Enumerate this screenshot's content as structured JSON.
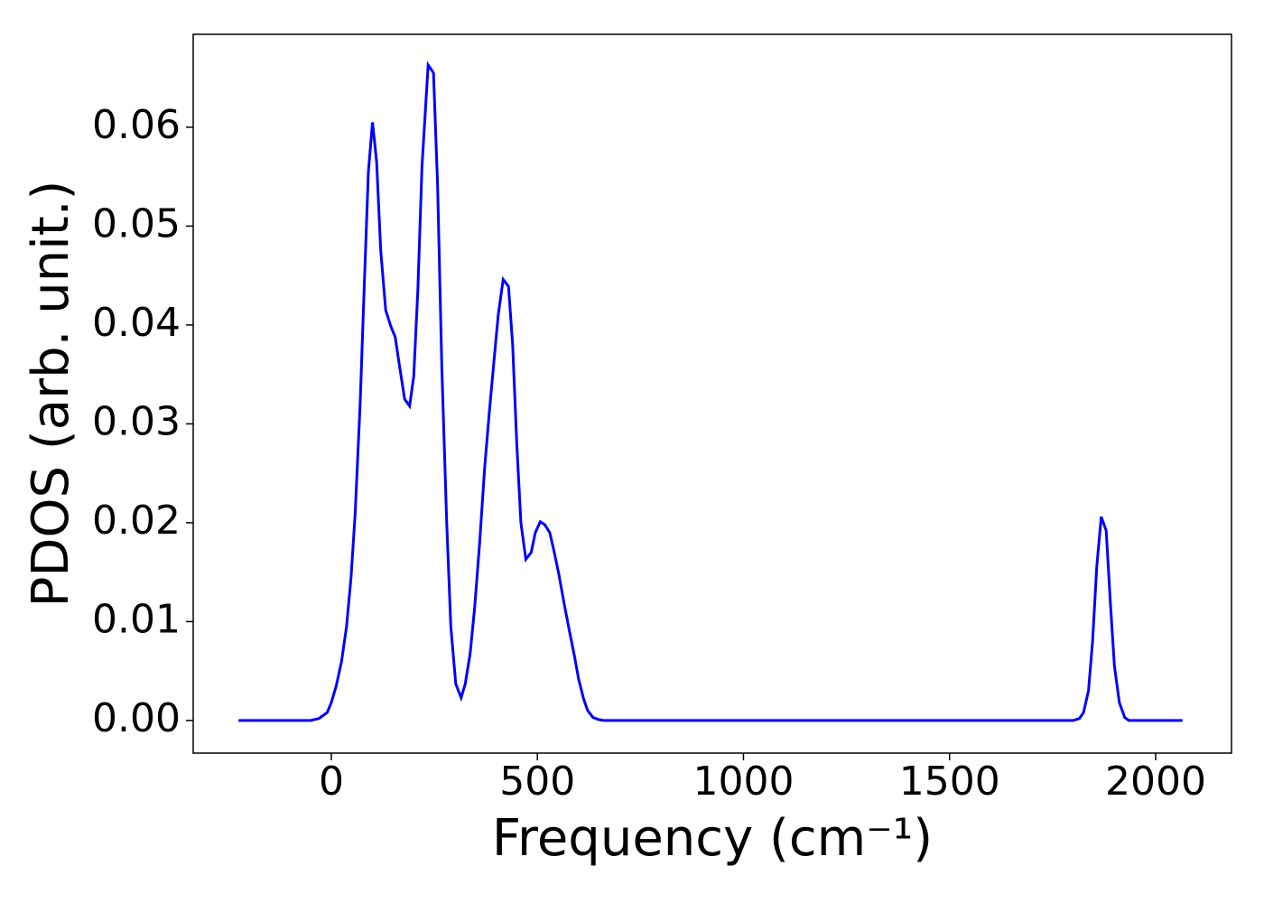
{
  "chart_data": {
    "type": "line",
    "xlabel": "Frequency (cm⁻¹)",
    "ylabel": "PDOS (arb. unit.)",
    "xlim": [
      -335,
      2184
    ],
    "ylim": [
      -0.0033,
      0.0694
    ],
    "xticks": [
      0,
      500,
      1000,
      1500,
      2000
    ],
    "yticks": [
      {
        "value": 0,
        "label": "0.00"
      },
      0.01,
      0.02,
      0.03,
      0.04,
      0.05,
      0.06
    ],
    "series": [
      {
        "color": "#0000ff",
        "x": [
          -225,
          -50,
          -30,
          -10,
          0,
          12,
          25,
          37,
          48,
          58,
          70,
          80,
          90,
          100,
          110,
          120,
          132,
          145,
          155,
          165,
          178,
          190,
          200,
          210,
          220,
          235,
          248,
          258,
          268,
          280,
          290,
          302,
          315,
          325,
          337,
          348,
          360,
          372,
          383,
          395,
          405,
          417,
          430,
          440,
          450,
          460,
          472,
          485,
          495,
          507,
          518,
          530,
          540,
          552,
          565,
          577,
          590,
          600,
          612,
          622,
          635,
          648,
          660,
          1800,
          1815,
          1825,
          1837,
          1847,
          1857,
          1868,
          1880,
          1890,
          1900,
          1912,
          1925,
          1935,
          2065
        ],
        "values": [
          0,
          0,
          0.0002,
          0.0008,
          0.0018,
          0.0035,
          0.006,
          0.0095,
          0.0145,
          0.021,
          0.032,
          0.044,
          0.0555,
          0.0605,
          0.0565,
          0.0475,
          0.0415,
          0.0398,
          0.0388,
          0.036,
          0.0325,
          0.0318,
          0.0348,
          0.0435,
          0.056,
          0.0663,
          0.0655,
          0.054,
          0.036,
          0.02,
          0.0095,
          0.0037,
          0.0023,
          0.0037,
          0.0068,
          0.0115,
          0.018,
          0.0255,
          0.031,
          0.0365,
          0.041,
          0.0446,
          0.0439,
          0.038,
          0.028,
          0.02,
          0.0163,
          0.017,
          0.019,
          0.0201,
          0.0198,
          0.019,
          0.0172,
          0.0148,
          0.0118,
          0.0092,
          0.0065,
          0.0042,
          0.0022,
          0.001,
          0.0003,
          0.0001,
          0,
          0,
          0.0002,
          0.0008,
          0.003,
          0.008,
          0.0155,
          0.0206,
          0.0192,
          0.012,
          0.0055,
          0.0018,
          0.0003,
          0,
          0
        ]
      }
    ]
  }
}
